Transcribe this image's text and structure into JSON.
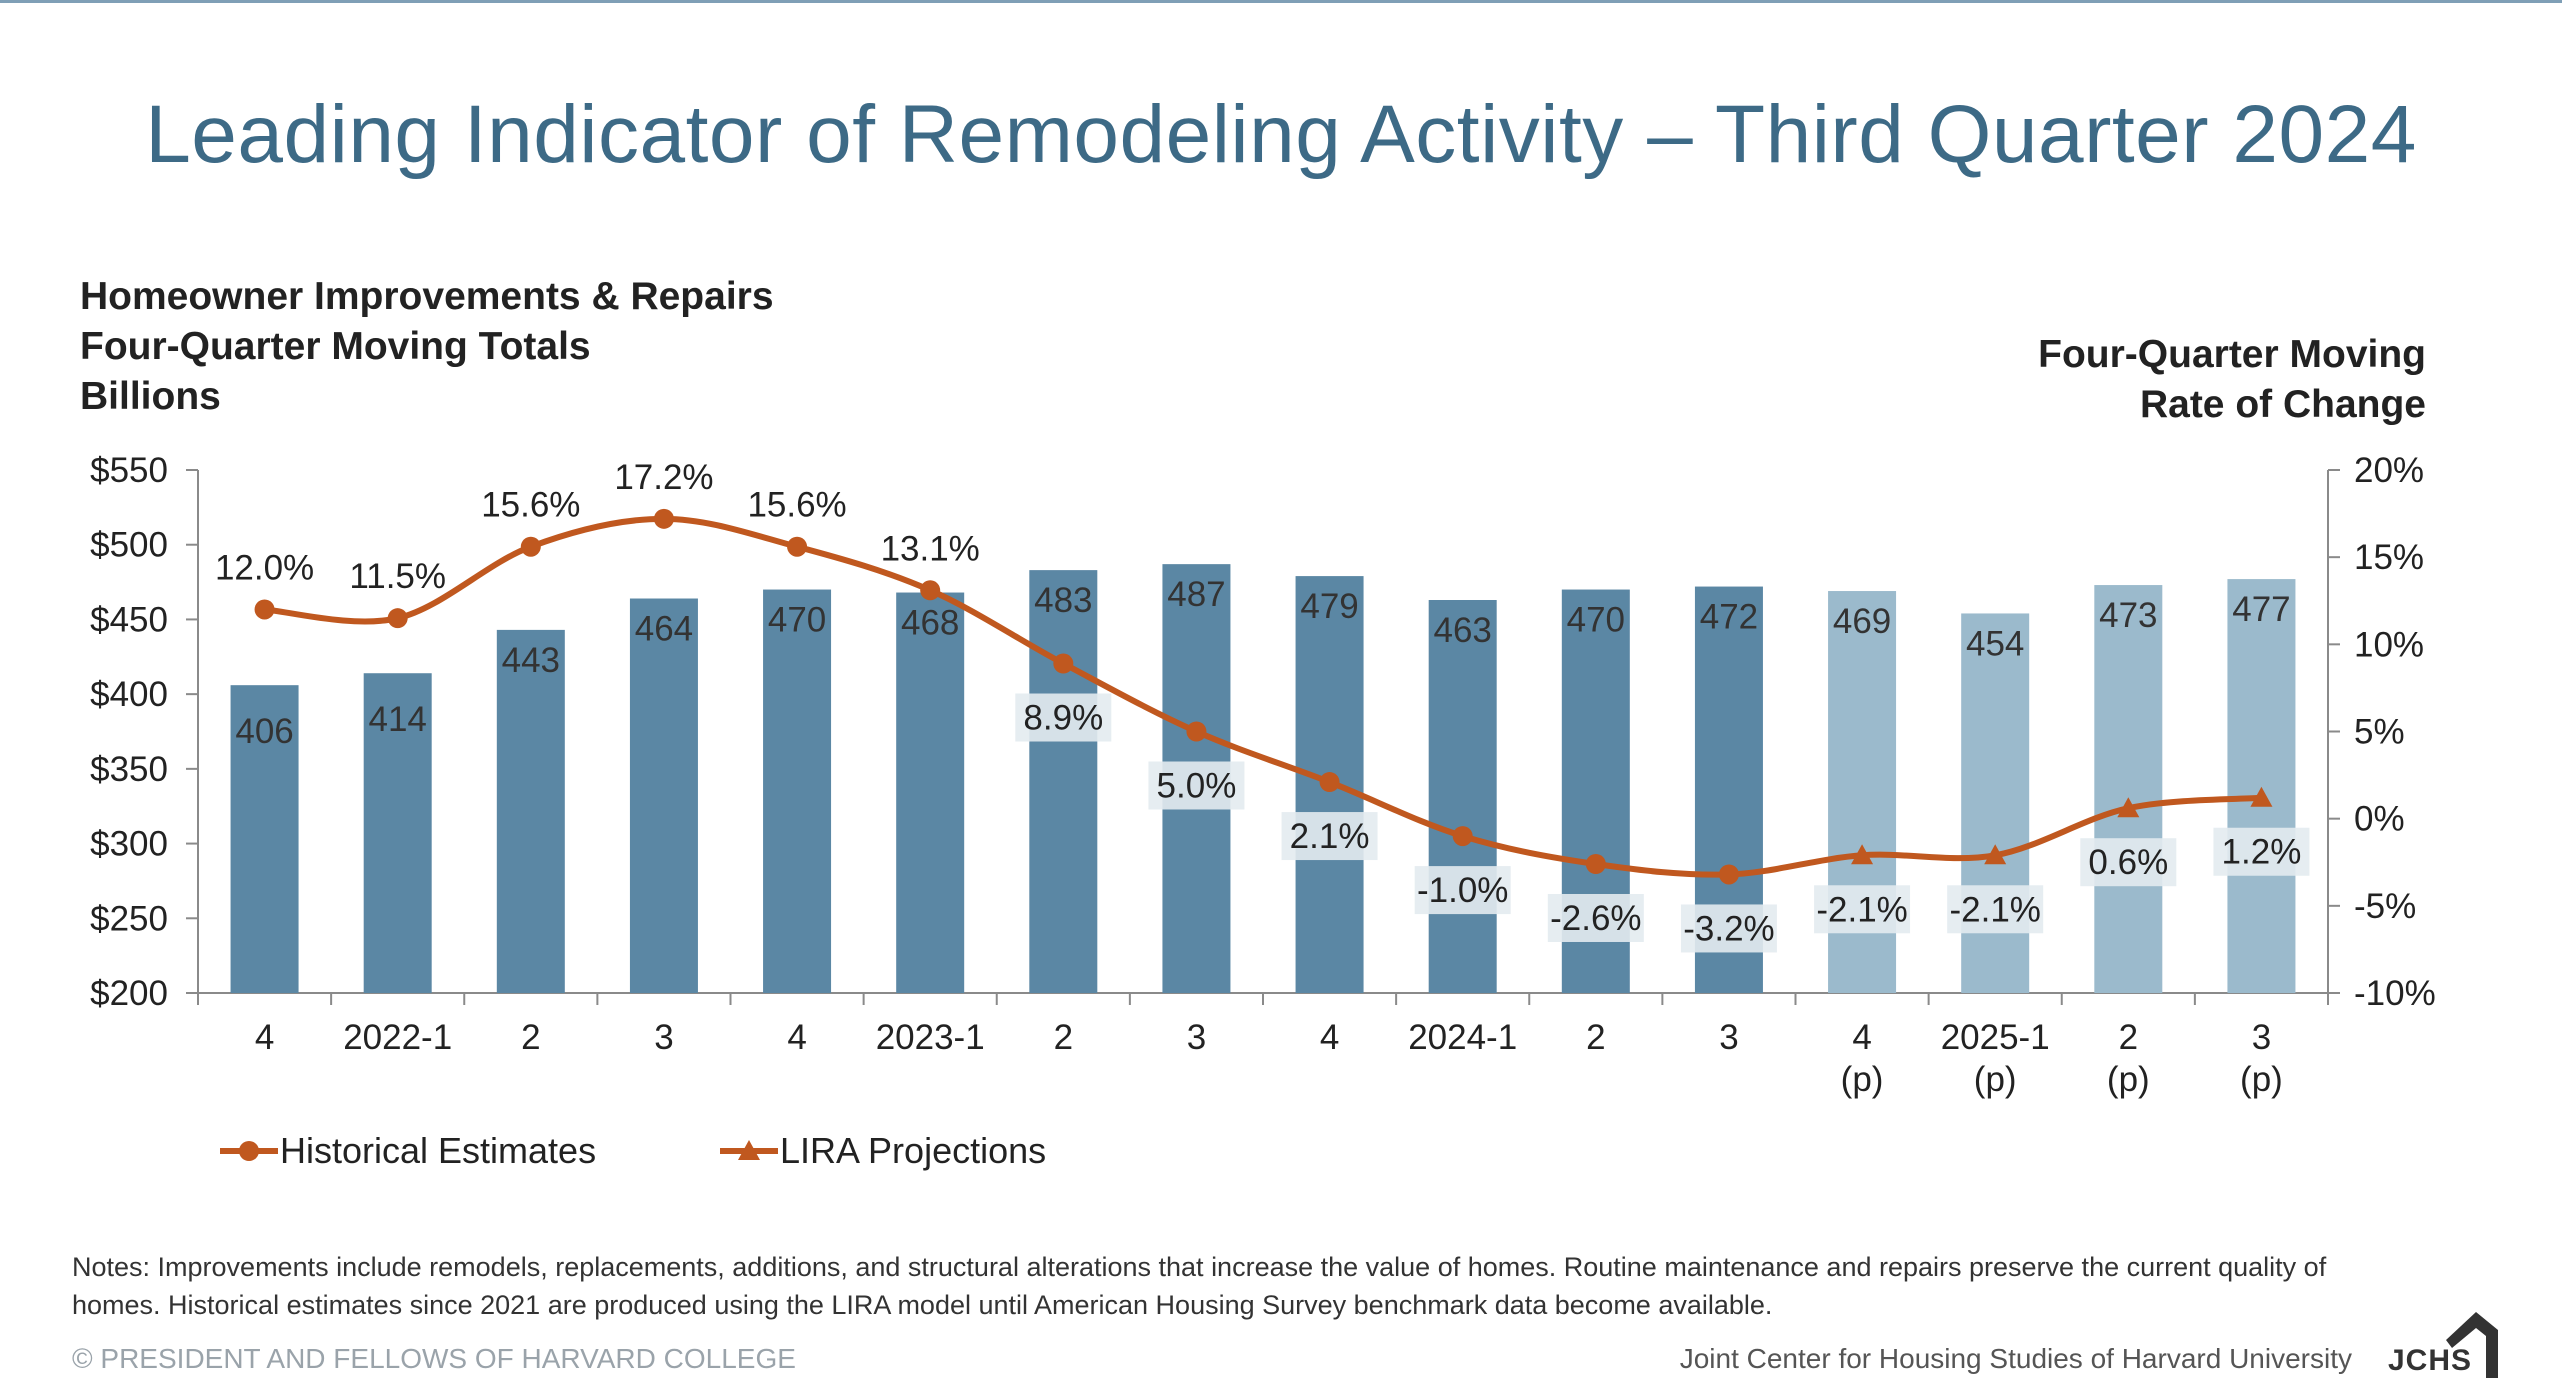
{
  "title": "Leading Indicator of Remodeling Activity – Third Quarter 2024",
  "left_axis_title": [
    "Homeowner Improvements & Repairs",
    "Four-Quarter Moving Totals",
    "Billions"
  ],
  "right_axis_title": [
    "Four-Quarter Moving",
    "Rate of Change"
  ],
  "colors": {
    "historical_bar": "#5b87a4",
    "projection_bar": "#9bbacc",
    "line": "#c0581f",
    "label_bg": "#e3ebf0",
    "axis": "#8a8a8a"
  },
  "chart_data": {
    "type": "bar+line",
    "categories": [
      "4",
      "2022-1",
      "2",
      "3",
      "4",
      "2023-1",
      "2",
      "3",
      "4",
      "2024-1",
      "2",
      "3",
      "4\n(p)",
      "2025-1\n(p)",
      "2\n(p)",
      "3\n(p)"
    ],
    "bars": {
      "name": "Four-Quarter Moving Totals",
      "values": [
        406,
        414,
        443,
        464,
        470,
        468,
        483,
        487,
        479,
        463,
        470,
        472,
        469,
        454,
        473,
        477
      ],
      "projection_start_index": 12
    },
    "line": {
      "values": [
        12.0,
        11.5,
        15.6,
        17.2,
        15.6,
        13.1,
        8.9,
        5.0,
        2.1,
        -1.0,
        -2.6,
        -3.2,
        -2.1,
        -2.1,
        0.6,
        1.2
      ],
      "labels": [
        "12.0%",
        "11.5%",
        "15.6%",
        "17.2%",
        "15.6%",
        "13.1%",
        "8.9%",
        "5.0%",
        "2.1%",
        "-1.0%",
        "-2.6%",
        "-3.2%",
        "-2.1%",
        "-2.1%",
        "0.6%",
        "1.2%"
      ]
    },
    "y_left": {
      "min": 200,
      "max": 550,
      "ticks": [
        "$200",
        "$250",
        "$300",
        "$350",
        "$400",
        "$450",
        "$500",
        "$550"
      ]
    },
    "y_right": {
      "min": -10,
      "max": 20,
      "ticks": [
        "-10%",
        "-5%",
        "0%",
        "5%",
        "10%",
        "15%",
        "20%"
      ]
    }
  },
  "legend": {
    "historical": "Historical Estimates",
    "projections": "LIRA Projections"
  },
  "notes": "Notes: Improvements include remodels, replacements, additions, and structural alterations that increase the value of homes. Routine maintenance and repairs preserve the current quality of homes. Historical estimates since 2021 are produced using the LIRA model until American Housing Survey benchmark data become available.",
  "footer": {
    "copyright": "© PRESIDENT AND FELLOWS OF HARVARD COLLEGE",
    "institution": "Joint Center for Housing Studies of Harvard University",
    "logo_text": "JCHS"
  }
}
